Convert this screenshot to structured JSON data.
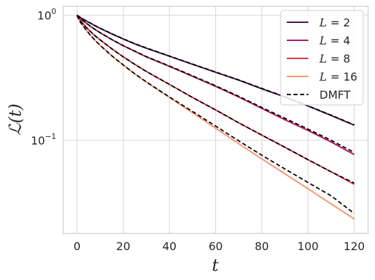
{
  "chart_data": {
    "type": "line",
    "xlabel": "t",
    "ylabel": "ℒ(t)",
    "x_scale": "linear",
    "y_scale": "log",
    "xlim": [
      -6,
      126
    ],
    "ylim": [
      0.018,
      1.18
    ],
    "grid": true,
    "legend_position": "top-right",
    "x_ticks": [
      0,
      20,
      40,
      60,
      80,
      100,
      120
    ],
    "x_tick_labels": [
      "0",
      "20",
      "40",
      "60",
      "80",
      "100",
      "120"
    ],
    "y_ticks": [
      1,
      0.1
    ],
    "y_tick_labels": [
      {
        "base": "10",
        "exp": "0"
      },
      {
        "base": "10",
        "exp": "−1"
      }
    ],
    "x": [
      0,
      1,
      2,
      4,
      6,
      8,
      10,
      15,
      20,
      25,
      30,
      40,
      50,
      60,
      70,
      80,
      90,
      100,
      110,
      120
    ],
    "series": [
      {
        "name": "L = 2",
        "label_var": "L",
        "label_val": "2",
        "color": "#4a1249",
        "dashed": false,
        "values": [
          1.0,
          0.97,
          0.945,
          0.9,
          0.86,
          0.82,
          0.785,
          0.71,
          0.645,
          0.59,
          0.545,
          0.47,
          0.405,
          0.35,
          0.303,
          0.258,
          0.222,
          0.188,
          0.158,
          0.132
        ]
      },
      {
        "name": "L = 4",
        "label_var": "L",
        "label_val": "4",
        "color": "#ad1759",
        "dashed": false,
        "values": [
          1.0,
          0.955,
          0.92,
          0.865,
          0.81,
          0.765,
          0.725,
          0.64,
          0.57,
          0.515,
          0.465,
          0.39,
          0.325,
          0.27,
          0.222,
          0.18,
          0.146,
          0.12,
          0.097,
          0.077
        ]
      },
      {
        "name": "L = 8",
        "label_var": "L",
        "label_val": "8",
        "color": "#e13342",
        "dashed": false,
        "values": [
          1.0,
          0.93,
          0.88,
          0.8,
          0.735,
          0.68,
          0.635,
          0.54,
          0.465,
          0.405,
          0.355,
          0.28,
          0.22,
          0.175,
          0.138,
          0.11,
          0.088,
          0.07,
          0.056,
          0.0445
        ]
      },
      {
        "name": "L = 16",
        "label_var": "L",
        "label_val": "16",
        "color": "#f6966e",
        "dashed": false,
        "values": [
          1.0,
          0.905,
          0.85,
          0.76,
          0.685,
          0.625,
          0.575,
          0.475,
          0.4,
          0.34,
          0.292,
          0.22,
          0.166,
          0.125,
          0.094,
          0.071,
          0.054,
          0.041,
          0.031,
          0.0235
        ]
      },
      {
        "name": "DMFT",
        "label_var": "",
        "label_val": "DMFT",
        "color": "#000000",
        "dashed": true,
        "values_by_L": {
          "2": [
            1.0,
            0.972,
            0.948,
            0.902,
            0.862,
            0.823,
            0.788,
            0.713,
            0.648,
            0.593,
            0.548,
            0.472,
            0.407,
            0.352,
            0.304,
            0.26,
            0.223,
            0.189,
            0.159,
            0.133
          ],
          "4": [
            1.0,
            0.955,
            0.92,
            0.865,
            0.81,
            0.765,
            0.725,
            0.64,
            0.572,
            0.517,
            0.467,
            0.393,
            0.328,
            0.273,
            0.225,
            0.183,
            0.15,
            0.123,
            0.1,
            0.08
          ],
          "8": [
            1.0,
            0.93,
            0.88,
            0.8,
            0.735,
            0.68,
            0.635,
            0.54,
            0.465,
            0.405,
            0.355,
            0.28,
            0.22,
            0.175,
            0.138,
            0.11,
            0.088,
            0.07,
            0.056,
            0.0455
          ],
          "16": [
            1.0,
            0.905,
            0.85,
            0.76,
            0.685,
            0.625,
            0.575,
            0.475,
            0.4,
            0.34,
            0.293,
            0.222,
            0.17,
            0.13,
            0.099,
            0.076,
            0.059,
            0.046,
            0.036,
            0.026
          ]
        }
      }
    ]
  }
}
